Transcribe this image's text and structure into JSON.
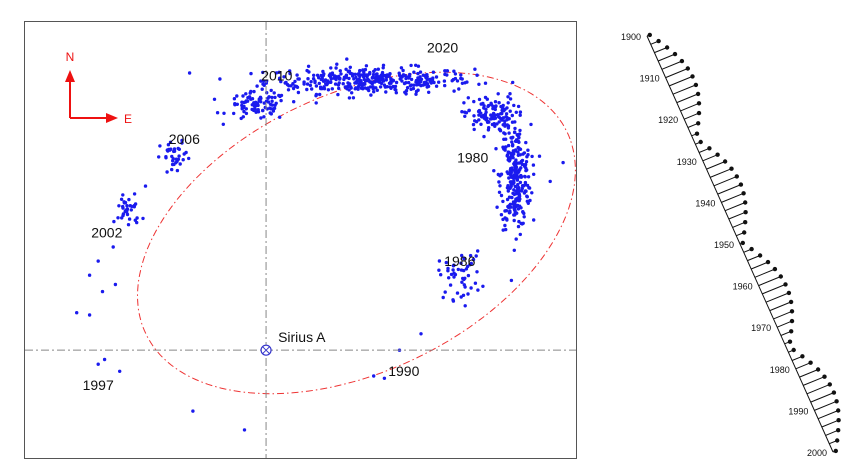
{
  "chart_data": [
    {
      "type": "scatter",
      "description_role": "Sirius B relative orbit around Sirius A",
      "reference_star": {
        "label": "Sirius A",
        "x": 0,
        "y": 0
      },
      "compass": {
        "north": "N",
        "east": "E",
        "color": "#ee1111"
      },
      "colors": {
        "points": "#1a1aee",
        "orbit": "#ee3333",
        "axes": "#888888",
        "text": "#111111"
      },
      "xlim": [
        -5.6,
        7.2
      ],
      "ylim": [
        -2.3,
        7.0
      ],
      "orbit_ellipse": {
        "center": [
          2.1,
          2.5
        ],
        "semi_major": 5.35,
        "semi_minor": 3.0,
        "rotation_deg": 22,
        "style": "dash-dot"
      },
      "epoch_labels": [
        {
          "text": "2020",
          "x": 4.1,
          "y": 6.35
        },
        {
          "text": "2010",
          "x": 0.25,
          "y": 5.75
        },
        {
          "text": "2006",
          "x": -1.9,
          "y": 4.4
        },
        {
          "text": "1980",
          "x": 4.8,
          "y": 4.0
        },
        {
          "text": "2002",
          "x": -3.7,
          "y": 2.4
        },
        {
          "text": "1986",
          "x": 4.5,
          "y": 1.8
        },
        {
          "text": "1990",
          "x": 3.2,
          "y": -0.55
        },
        {
          "text": "1997",
          "x": -3.9,
          "y": -0.85
        }
      ],
      "scatter_clusters": [
        {
          "center": [
            2.4,
            5.75
          ],
          "spread": [
            2.4,
            0.28
          ],
          "count": 380
        },
        {
          "center": [
            -0.2,
            5.2
          ],
          "spread": [
            0.7,
            0.3
          ],
          "count": 90
        },
        {
          "center": [
            5.8,
            3.7
          ],
          "spread": [
            0.35,
            1.1
          ],
          "count": 260
        },
        {
          "center": [
            5.2,
            5.0
          ],
          "spread": [
            0.6,
            0.4
          ],
          "count": 120
        },
        {
          "center": [
            -2.1,
            4.1
          ],
          "spread": [
            0.35,
            0.35
          ],
          "count": 35
        },
        {
          "center": [
            -3.2,
            3.0
          ],
          "spread": [
            0.3,
            0.4
          ],
          "count": 35
        },
        {
          "center": [
            4.5,
            1.6
          ],
          "spread": [
            0.5,
            0.5
          ],
          "count": 50
        }
      ],
      "scatter_extra_points": [
        [
          -4.4,
          0.8
        ],
        [
          -4.1,
          0.75
        ],
        [
          -3.9,
          -0.3
        ],
        [
          -3.75,
          -0.2
        ],
        [
          -3.4,
          -0.45
        ],
        [
          -1.7,
          -1.3
        ],
        [
          -0.5,
          -1.7
        ],
        [
          2.5,
          -0.55
        ],
        [
          2.75,
          -0.6
        ],
        [
          3.6,
          0.35
        ],
        [
          3.1,
          0.0
        ],
        [
          -3.9,
          1.9
        ],
        [
          -4.1,
          1.6
        ],
        [
          -3.8,
          1.25
        ],
        [
          -3.5,
          1.4
        ],
        [
          -3.55,
          2.2
        ],
        [
          -2.8,
          3.5
        ],
        [
          -2.3,
          3.8
        ],
        [
          6.9,
          4.0
        ],
        [
          6.6,
          3.6
        ]
      ]
    },
    {
      "type": "line",
      "description_role": "Sirius proper motion wobble 1900-2000",
      "year_start": 1900,
      "year_end": 2000,
      "year_labels": [
        "1900",
        "1910",
        "1920",
        "1930",
        "1940",
        "1950",
        "1960",
        "1970",
        "1980",
        "1990",
        "2000"
      ],
      "colors": {
        "line": "#111111",
        "text": "#111111"
      }
    }
  ]
}
